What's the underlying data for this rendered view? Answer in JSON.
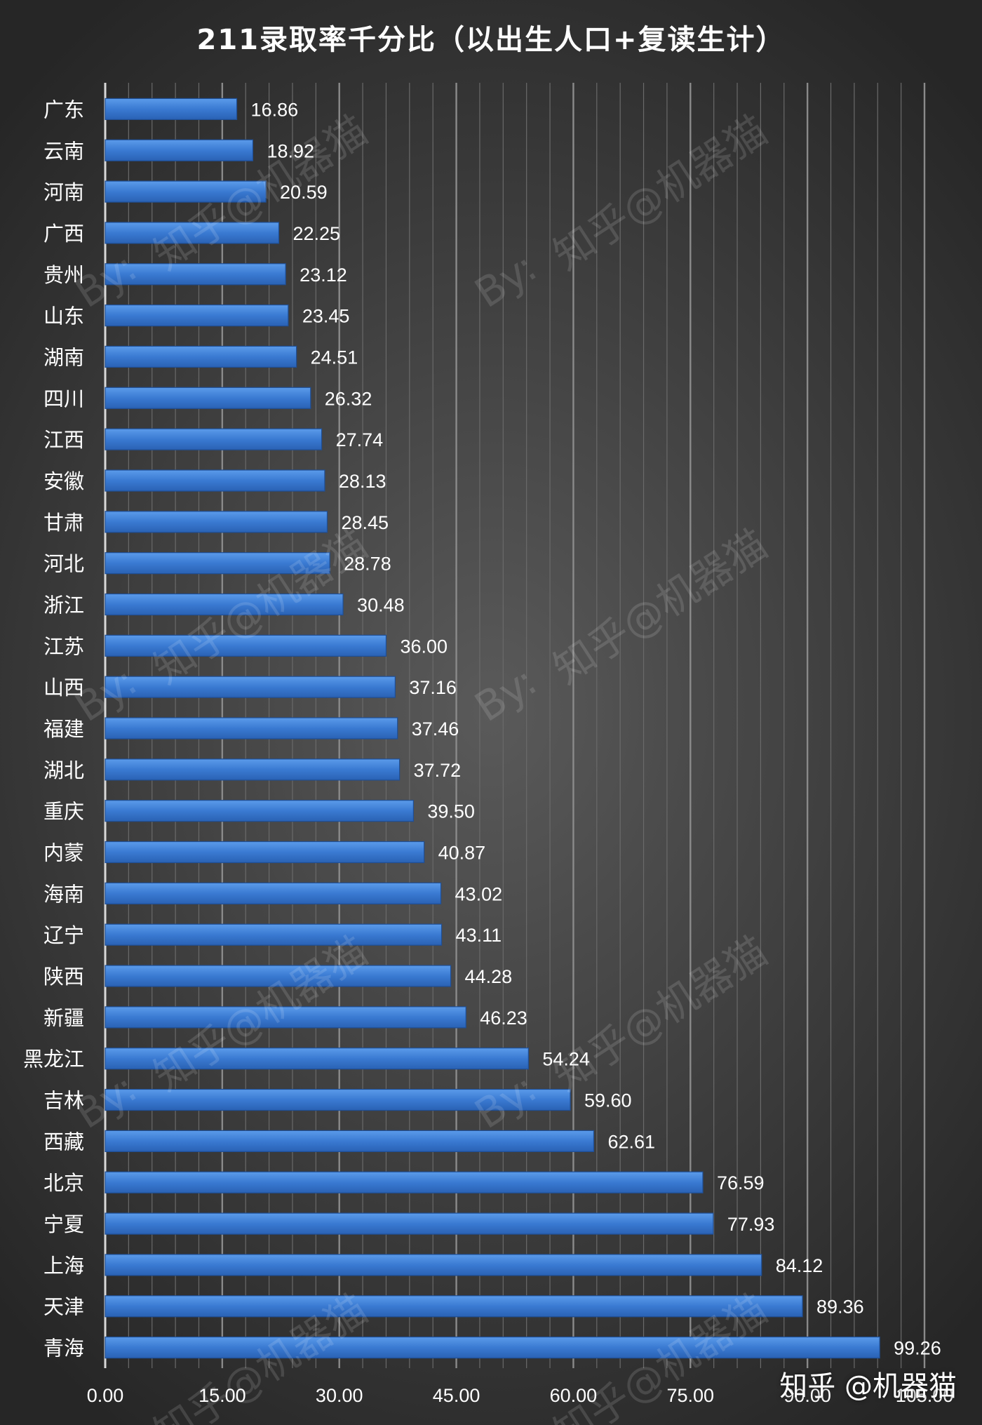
{
  "chart_data": {
    "type": "bar",
    "orientation": "horizontal",
    "title": "211录取率千分比（以出生人口+复读生计）",
    "xlabel": "",
    "ylabel": "",
    "categories": [
      "广东",
      "云南",
      "河南",
      "广西",
      "贵州",
      "山东",
      "湖南",
      "四川",
      "江西",
      "安徽",
      "甘肃",
      "河北",
      "浙江",
      "江苏",
      "山西",
      "福建",
      "湖北",
      "重庆",
      "内蒙",
      "海南",
      "辽宁",
      "陕西",
      "新疆",
      "黑龙江",
      "吉林",
      "西藏",
      "北京",
      "宁夏",
      "上海",
      "天津",
      "青海"
    ],
    "values": [
      16.86,
      18.92,
      20.59,
      22.25,
      23.12,
      23.45,
      24.51,
      26.32,
      27.74,
      28.13,
      28.45,
      28.78,
      30.48,
      36.0,
      37.16,
      37.46,
      37.72,
      39.5,
      40.87,
      43.02,
      43.11,
      44.28,
      46.23,
      54.24,
      59.6,
      62.61,
      76.59,
      77.93,
      84.12,
      89.36,
      99.26
    ],
    "value_labels": [
      "16.86",
      "18.92",
      "20.59",
      "22.25",
      "23.12",
      "23.45",
      "24.51",
      "26.32",
      "27.74",
      "28.13",
      "28.45",
      "28.78",
      "30.48",
      "36.00",
      "37.16",
      "37.46",
      "37.72",
      "39.50",
      "40.87",
      "43.02",
      "43.11",
      "44.28",
      "46.23",
      "54.24",
      "59.60",
      "62.61",
      "76.59",
      "77.93",
      "84.12",
      "89.36",
      "99.26"
    ],
    "xticks": [
      0,
      15,
      30,
      45,
      60,
      75,
      90,
      105
    ],
    "xtick_labels": [
      "0.00",
      "15.00",
      "30.00",
      "45.00",
      "60.00",
      "75.00",
      "90.00",
      "105.00"
    ],
    "xlim": [
      0,
      105
    ],
    "grid": "vertical",
    "legend": "none",
    "colors": {
      "bar": "#3d7fd6",
      "bar_edge": "#1f4f96",
      "text": "#ffffff",
      "grid": "#7a7a7a"
    }
  },
  "watermark": {
    "text": "知乎@机器猫",
    "by_text": "By:"
  },
  "site_mark": "知乎 @机器猫"
}
